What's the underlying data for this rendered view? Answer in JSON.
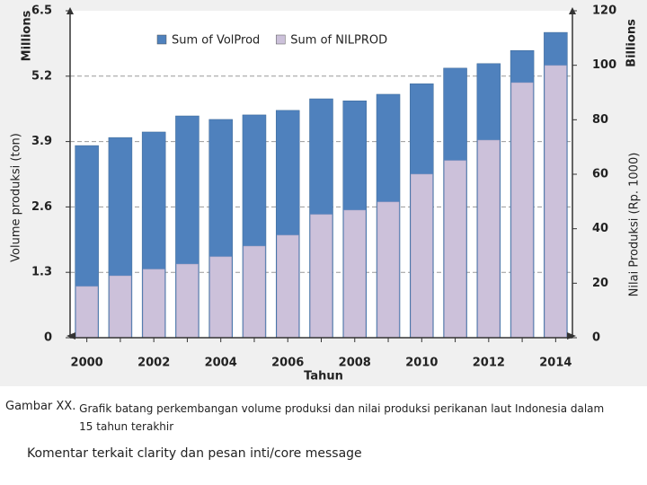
{
  "chart_data": {
    "type": "bar",
    "y_unit": "Millions",
    "y2_unit": "Billions",
    "ylabel": "Volume produksi (ton)",
    "y2label": "Nilai Produksi (Rp. 1000)",
    "xlabel": "Tahun",
    "categories": [
      "2000",
      null,
      "2002",
      null,
      "2004",
      null,
      "2006",
      null,
      "2008",
      null,
      "2010",
      null,
      "2012",
      null,
      "2014"
    ],
    "series": [
      {
        "name": "Sum of VolProd",
        "color": "#4f81bd",
        "values": [
          3.82,
          3.98,
          4.09,
          4.41,
          4.34,
          4.43,
          4.52,
          4.75,
          4.71,
          4.84,
          5.05,
          5.36,
          5.45,
          5.71,
          6.07
        ]
      },
      {
        "name": "Sum of NILPROD",
        "color": "#ccc1da",
        "axis": "y2",
        "values": [
          18.8,
          22.7,
          25.1,
          27.0,
          29.7,
          33.6,
          37.6,
          45.2,
          46.8,
          49.8,
          60.0,
          65.0,
          72.5,
          93.6,
          99.9
        ]
      }
    ],
    "ylim": [
      0,
      6.5
    ],
    "yticks": [
      0,
      1.3,
      2.6,
      3.9,
      5.2,
      6.5
    ],
    "y2lim": [
      0,
      120
    ],
    "y2ticks": [
      0,
      20,
      40,
      60,
      80,
      100,
      120
    ],
    "grid": true,
    "legend": "top"
  },
  "caption": {
    "label": "Gambar XX.",
    "text": "Grafik batang perkembangan volume produksi dan nilai produksi perikanan laut Indonesia dalam 15 tahun terakhir"
  },
  "comment": "Komentar terkait clarity dan pesan inti/core message"
}
